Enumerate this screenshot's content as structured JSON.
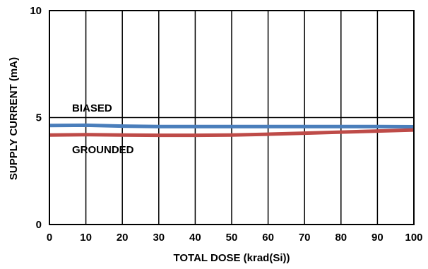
{
  "chart_data": {
    "type": "line",
    "xlabel": "TOTAL DOSE (krad(Si))",
    "ylabel": "SUPPLY CURRENT (mA)",
    "xlim": [
      0,
      100
    ],
    "ylim": [
      0,
      10
    ],
    "x_ticks": [
      "0",
      "10",
      "20",
      "30",
      "40",
      "50",
      "60",
      "70",
      "80",
      "90",
      "100"
    ],
    "y_ticks": [
      "0",
      "5",
      "10"
    ],
    "grid": true,
    "series": [
      {
        "name": "BIASED",
        "color": "#4a7ebb",
        "x": [
          0,
          10,
          20,
          30,
          40,
          50,
          60,
          70,
          80,
          90,
          100
        ],
        "values": [
          4.63,
          4.64,
          4.6,
          4.58,
          4.58,
          4.58,
          4.58,
          4.58,
          4.58,
          4.58,
          4.57
        ]
      },
      {
        "name": "GROUNDED",
        "color": "#be4b48",
        "x": [
          0,
          10,
          20,
          30,
          40,
          50,
          60,
          70,
          80,
          90,
          100
        ],
        "values": [
          4.18,
          4.2,
          4.18,
          4.17,
          4.17,
          4.18,
          4.22,
          4.27,
          4.32,
          4.37,
          4.42
        ]
      }
    ],
    "annotations": [
      {
        "text": "BIASED",
        "series": "BIASED"
      },
      {
        "text": "GROUNDED",
        "series": "GROUNDED"
      }
    ]
  }
}
